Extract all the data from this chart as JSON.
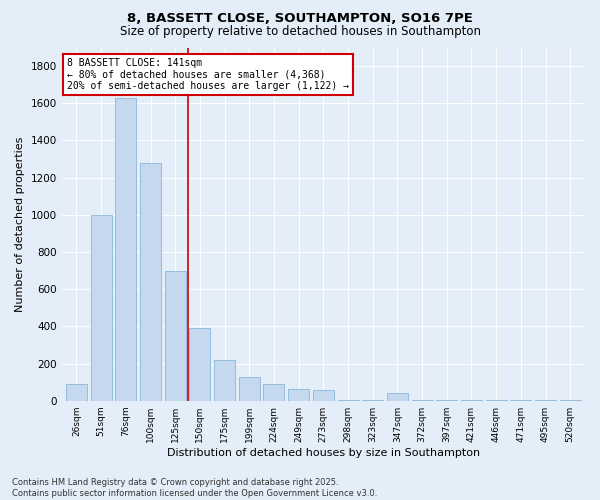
{
  "title_line1": "8, BASSETT CLOSE, SOUTHAMPTON, SO16 7PE",
  "title_line2": "Size of property relative to detached houses in Southampton",
  "xlabel": "Distribution of detached houses by size in Southampton",
  "ylabel": "Number of detached properties",
  "categories": [
    "26sqm",
    "51sqm",
    "76sqm",
    "100sqm",
    "125sqm",
    "150sqm",
    "175sqm",
    "199sqm",
    "224sqm",
    "249sqm",
    "273sqm",
    "298sqm",
    "323sqm",
    "347sqm",
    "372sqm",
    "397sqm",
    "421sqm",
    "446sqm",
    "471sqm",
    "495sqm",
    "520sqm"
  ],
  "values": [
    90,
    1000,
    1630,
    1280,
    700,
    390,
    220,
    130,
    90,
    65,
    55,
    2,
    2,
    40,
    2,
    2,
    2,
    2,
    2,
    2,
    2
  ],
  "bar_color": "#c5d8ee",
  "bar_edge_color": "#7aadd4",
  "vline_index": 4.5,
  "vline_color": "#cc0000",
  "annotation_text": "8 BASSETT CLOSE: 141sqm\n← 80% of detached houses are smaller (4,368)\n20% of semi-detached houses are larger (1,122) →",
  "annotation_box_facecolor": "#ffffff",
  "annotation_box_edgecolor": "#cc0000",
  "ylim": [
    0,
    1900
  ],
  "yticks": [
    0,
    200,
    400,
    600,
    800,
    1000,
    1200,
    1400,
    1600,
    1800
  ],
  "bg_color": "#e4eef8",
  "grid_color": "#ffffff",
  "footer_line1": "Contains HM Land Registry data © Crown copyright and database right 2025.",
  "footer_line2": "Contains public sector information licensed under the Open Government Licence v3.0."
}
